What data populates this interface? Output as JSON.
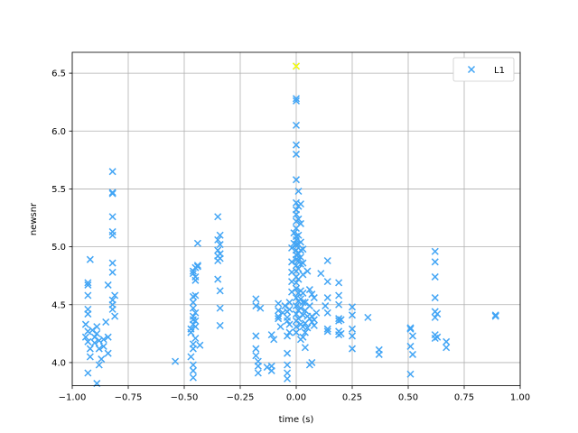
{
  "chart_data": {
    "type": "scatter",
    "xlabel": "time (s)",
    "ylabel": "newsnr",
    "xlim": [
      -1.0,
      1.0
    ],
    "ylim": [
      3.8,
      6.68
    ],
    "x_ticks": [
      "−1.00",
      "−0.75",
      "−0.50",
      "−0.25",
      "0.00",
      "0.25",
      "0.50",
      "0.75",
      "1.00"
    ],
    "y_ticks": [
      "4.0",
      "4.5",
      "5.0",
      "5.5",
      "6.0",
      "6.5"
    ],
    "grid": true,
    "legend_position": "top-right",
    "marker": "x",
    "series": [
      {
        "name": "L1",
        "color": "#42a5f5",
        "points": [
          [
            -0.92,
            4.89
          ],
          [
            -0.93,
            4.69
          ],
          [
            -0.93,
            4.67
          ],
          [
            -0.93,
            4.58
          ],
          [
            -0.93,
            4.46
          ],
          [
            -0.93,
            4.42
          ],
          [
            -0.94,
            4.33
          ],
          [
            -0.93,
            4.27
          ],
          [
            -0.94,
            4.22
          ],
          [
            -0.93,
            4.18
          ],
          [
            -0.92,
            4.12
          ],
          [
            -0.92,
            4.05
          ],
          [
            -0.93,
            3.91
          ],
          [
            -0.91,
            4.28
          ],
          [
            -0.9,
            4.22
          ],
          [
            -0.9,
            4.17
          ],
          [
            -0.89,
            4.31
          ],
          [
            -0.89,
            4.25
          ],
          [
            -0.88,
            4.19
          ],
          [
            -0.88,
            4.12
          ],
          [
            -0.88,
            3.98
          ],
          [
            -0.89,
            3.82
          ],
          [
            -0.87,
            4.03
          ],
          [
            -0.86,
            4.2
          ],
          [
            -0.86,
            4.14
          ],
          [
            -0.85,
            4.35
          ],
          [
            -0.84,
            4.22
          ],
          [
            -0.84,
            4.08
          ],
          [
            -0.84,
            4.67
          ],
          [
            -0.82,
            5.65
          ],
          [
            -0.82,
            5.47
          ],
          [
            -0.82,
            5.46
          ],
          [
            -0.82,
            5.26
          ],
          [
            -0.82,
            5.13
          ],
          [
            -0.82,
            5.1
          ],
          [
            -0.82,
            4.86
          ],
          [
            -0.82,
            4.78
          ],
          [
            -0.81,
            4.58
          ],
          [
            -0.82,
            4.54
          ],
          [
            -0.82,
            4.5
          ],
          [
            -0.82,
            4.46
          ],
          [
            -0.81,
            4.4
          ],
          [
            -0.54,
            4.01
          ],
          [
            -0.47,
            4.05
          ],
          [
            -0.47,
            4.26
          ],
          [
            -0.47,
            4.29
          ],
          [
            -0.46,
            4.33
          ],
          [
            -0.46,
            4.37
          ],
          [
            -0.46,
            4.4
          ],
          [
            -0.46,
            4.47
          ],
          [
            -0.46,
            4.52
          ],
          [
            -0.46,
            4.57
          ],
          [
            -0.46,
            4.77
          ],
          [
            -0.46,
            4.79
          ],
          [
            -0.46,
            4.16
          ],
          [
            -0.46,
            4.12
          ],
          [
            -0.46,
            3.98
          ],
          [
            -0.46,
            3.93
          ],
          [
            -0.46,
            3.87
          ],
          [
            -0.45,
            4.82
          ],
          [
            -0.45,
            4.74
          ],
          [
            -0.45,
            4.71
          ],
          [
            -0.45,
            4.58
          ],
          [
            -0.45,
            4.43
          ],
          [
            -0.45,
            4.36
          ],
          [
            -0.45,
            4.31
          ],
          [
            -0.45,
            4.21
          ],
          [
            -0.44,
            4.84
          ],
          [
            -0.44,
            4.83
          ],
          [
            -0.44,
            5.03
          ],
          [
            -0.43,
            4.15
          ],
          [
            -0.35,
            5.26
          ],
          [
            -0.35,
            5.06
          ],
          [
            -0.35,
            4.97
          ],
          [
            -0.35,
            4.92
          ],
          [
            -0.35,
            4.88
          ],
          [
            -0.35,
            4.72
          ],
          [
            -0.34,
            5.1
          ],
          [
            -0.34,
            5.02
          ],
          [
            -0.34,
            4.94
          ],
          [
            -0.34,
            4.9
          ],
          [
            -0.34,
            4.62
          ],
          [
            -0.34,
            4.47
          ],
          [
            -0.34,
            4.32
          ],
          [
            -0.18,
            4.55
          ],
          [
            -0.18,
            4.49
          ],
          [
            -0.18,
            4.23
          ],
          [
            -0.18,
            4.12
          ],
          [
            -0.18,
            4.06
          ],
          [
            -0.17,
            4.01
          ],
          [
            -0.17,
            3.97
          ],
          [
            -0.17,
            3.91
          ],
          [
            -0.16,
            4.47
          ],
          [
            -0.13,
            3.96
          ],
          [
            -0.11,
            4.24
          ],
          [
            -0.11,
            3.97
          ],
          [
            -0.11,
            3.93
          ],
          [
            -0.1,
            4.2
          ],
          [
            -0.08,
            4.51
          ],
          [
            -0.08,
            4.45
          ],
          [
            -0.08,
            4.4
          ],
          [
            -0.08,
            4.38
          ],
          [
            -0.07,
            4.31
          ],
          [
            -0.06,
            4.43
          ],
          [
            -0.05,
            4.49
          ],
          [
            -0.04,
            4.44
          ],
          [
            -0.04,
            4.39
          ],
          [
            -0.04,
            4.36
          ],
          [
            -0.03,
            4.52
          ],
          [
            -0.03,
            4.33
          ],
          [
            -0.04,
            4.23
          ],
          [
            -0.04,
            4.08
          ],
          [
            -0.04,
            3.98
          ],
          [
            -0.04,
            3.91
          ],
          [
            -0.04,
            3.86
          ],
          [
            -0.03,
            4.26
          ],
          [
            -0.03,
            4.46
          ],
          [
            -0.02,
            4.61
          ],
          [
            -0.02,
            4.7
          ],
          [
            -0.02,
            4.78
          ],
          [
            -0.02,
            4.87
          ],
          [
            -0.02,
            4.99
          ],
          [
            -0.01,
            5.03
          ],
          [
            -0.01,
            5.12
          ],
          [
            0.0,
            6.56
          ],
          [
            0.0,
            6.28
          ],
          [
            0.0,
            6.26
          ],
          [
            0.0,
            6.05
          ],
          [
            0.0,
            5.88
          ],
          [
            0.0,
            5.8
          ],
          [
            0.0,
            5.58
          ],
          [
            0.0,
            5.38
          ],
          [
            0.0,
            5.32
          ],
          [
            0.0,
            5.28
          ],
          [
            0.0,
            5.22
          ],
          [
            0.0,
            5.16
          ],
          [
            0.0,
            5.09
          ],
          [
            0.0,
            5.06
          ],
          [
            0.0,
            5.02
          ],
          [
            0.0,
            4.97
          ],
          [
            0.0,
            4.93
          ],
          [
            0.0,
            4.89
          ],
          [
            0.0,
            4.84
          ],
          [
            0.0,
            4.79
          ],
          [
            0.0,
            4.74
          ],
          [
            0.0,
            4.69
          ],
          [
            0.0,
            4.64
          ],
          [
            0.0,
            4.56
          ],
          [
            0.0,
            4.49
          ],
          [
            0.0,
            4.42
          ],
          [
            0.0,
            4.36
          ],
          [
            0.0,
            4.31
          ],
          [
            0.0,
            4.26
          ],
          [
            0.01,
            5.48
          ],
          [
            0.01,
            5.35
          ],
          [
            0.01,
            5.24
          ],
          [
            0.01,
            5.1
          ],
          [
            0.01,
            5.02
          ],
          [
            0.01,
            4.94
          ],
          [
            0.01,
            4.88
          ],
          [
            0.01,
            4.81
          ],
          [
            0.01,
            4.72
          ],
          [
            0.01,
            4.6
          ],
          [
            0.01,
            4.53
          ],
          [
            0.01,
            4.45
          ],
          [
            0.01,
            4.38
          ],
          [
            0.02,
            5.37
          ],
          [
            0.02,
            5.2
          ],
          [
            0.02,
            5.04
          ],
          [
            0.02,
            4.97
          ],
          [
            0.02,
            4.91
          ],
          [
            0.02,
            4.85
          ],
          [
            0.02,
            4.62
          ],
          [
            0.02,
            4.55
          ],
          [
            0.02,
            4.47
          ],
          [
            0.02,
            4.33
          ],
          [
            0.02,
            4.2
          ],
          [
            0.03,
            4.98
          ],
          [
            0.03,
            4.86
          ],
          [
            0.03,
            4.76
          ],
          [
            0.03,
            4.6
          ],
          [
            0.03,
            4.52
          ],
          [
            0.03,
            4.41
          ],
          [
            0.03,
            4.31
          ],
          [
            0.03,
            4.22
          ],
          [
            0.04,
            4.52
          ],
          [
            0.04,
            4.45
          ],
          [
            0.04,
            4.34
          ],
          [
            0.04,
            4.26
          ],
          [
            0.04,
            4.13
          ],
          [
            0.05,
            4.79
          ],
          [
            0.05,
            4.4
          ],
          [
            0.05,
            4.3
          ],
          [
            0.06,
            4.63
          ],
          [
            0.06,
            4.49
          ],
          [
            0.06,
            4.38
          ],
          [
            0.06,
            3.98
          ],
          [
            0.07,
            4.59
          ],
          [
            0.07,
            4.4
          ],
          [
            0.07,
            4.35
          ],
          [
            0.07,
            4.0
          ],
          [
            0.08,
            4.56
          ],
          [
            0.08,
            4.37
          ],
          [
            0.08,
            4.32
          ],
          [
            0.09,
            4.43
          ],
          [
            0.11,
            4.77
          ],
          [
            0.13,
            4.49
          ],
          [
            0.14,
            4.88
          ],
          [
            0.14,
            4.7
          ],
          [
            0.14,
            4.56
          ],
          [
            0.14,
            4.43
          ],
          [
            0.14,
            4.29
          ],
          [
            0.14,
            4.27
          ],
          [
            0.19,
            4.69
          ],
          [
            0.19,
            4.58
          ],
          [
            0.19,
            4.5
          ],
          [
            0.19,
            4.38
          ],
          [
            0.19,
            4.36
          ],
          [
            0.19,
            4.27
          ],
          [
            0.19,
            4.24
          ],
          [
            0.2,
            4.37
          ],
          [
            0.2,
            4.25
          ],
          [
            0.25,
            4.48
          ],
          [
            0.25,
            4.41
          ],
          [
            0.25,
            4.29
          ],
          [
            0.25,
            4.23
          ],
          [
            0.25,
            4.12
          ],
          [
            0.32,
            4.39
          ],
          [
            0.37,
            4.11
          ],
          [
            0.37,
            4.07
          ],
          [
            0.51,
            4.3
          ],
          [
            0.51,
            4.29
          ],
          [
            0.51,
            4.14
          ],
          [
            0.52,
            4.07
          ],
          [
            0.51,
            3.9
          ],
          [
            0.52,
            4.23
          ],
          [
            0.62,
            4.96
          ],
          [
            0.62,
            4.87
          ],
          [
            0.62,
            4.74
          ],
          [
            0.62,
            4.56
          ],
          [
            0.62,
            4.44
          ],
          [
            0.62,
            4.39
          ],
          [
            0.62,
            4.24
          ],
          [
            0.62,
            4.21
          ],
          [
            0.63,
            4.42
          ],
          [
            0.63,
            4.22
          ],
          [
            0.67,
            4.18
          ],
          [
            0.67,
            4.13
          ],
          [
            0.89,
            4.41
          ],
          [
            0.89,
            4.4
          ]
        ]
      }
    ],
    "highlight": {
      "points": [
        [
          0.0,
          6.56
        ]
      ],
      "color": "#ffff00"
    }
  }
}
